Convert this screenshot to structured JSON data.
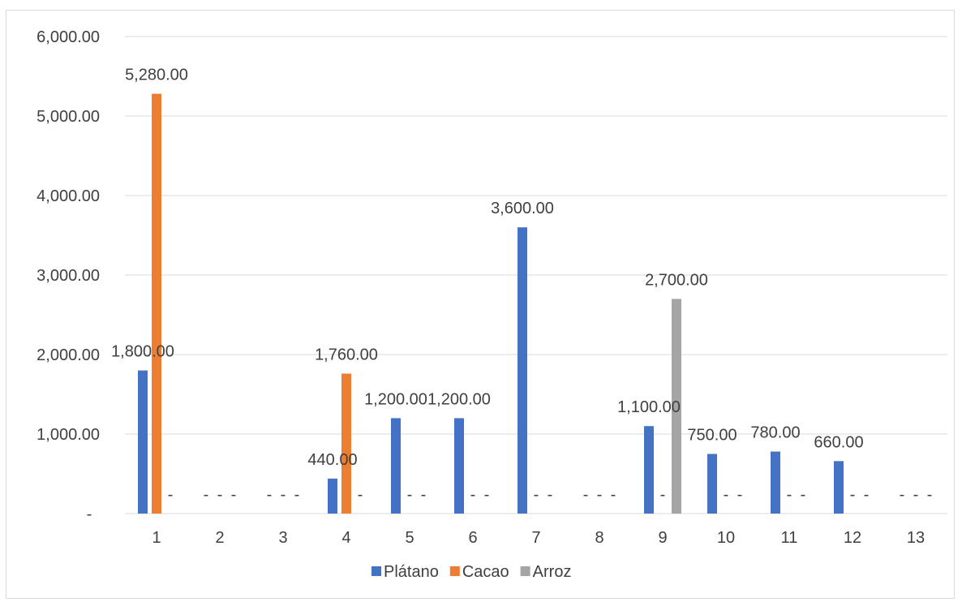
{
  "chart_data": {
    "type": "bar",
    "categories": [
      "1",
      "2",
      "3",
      "4",
      "5",
      "6",
      "7",
      "8",
      "9",
      "10",
      "11",
      "12",
      "13"
    ],
    "series": [
      {
        "name": "Plátano",
        "color": "#4472C4",
        "values": [
          1800,
          0,
          0,
          440,
          1200,
          1200,
          3600,
          0,
          1100,
          750,
          780,
          660,
          0
        ],
        "labels": [
          "1,800.00",
          "-",
          "-",
          "440.00",
          "1,200.00",
          "1,200.00",
          "3,600.00",
          "-",
          "1,100.00",
          "750.00",
          "780.00",
          "660.00",
          "-"
        ]
      },
      {
        "name": "Cacao",
        "color": "#ED7D31",
        "values": [
          5280,
          0,
          0,
          1760,
          0,
          0,
          0,
          0,
          0,
          0,
          0,
          0,
          0
        ],
        "labels": [
          "5,280.00",
          "-",
          "-",
          "1,760.00",
          "-",
          "-",
          "-",
          "-",
          "-",
          "-",
          "-",
          "-",
          "-"
        ]
      },
      {
        "name": "Arroz",
        "color": "#A5A5A5",
        "values": [
          0,
          0,
          0,
          0,
          0,
          0,
          0,
          0,
          2700,
          0,
          0,
          0,
          0
        ],
        "labels": [
          "-",
          "-",
          "-",
          "-",
          "-",
          "-",
          "-",
          "-",
          "2,700.00",
          "-",
          "-",
          "-",
          "-"
        ]
      }
    ],
    "ylim": [
      0,
      6000
    ],
    "yticks": [
      0,
      1000,
      2000,
      3000,
      4000,
      5000,
      6000
    ],
    "ytick_labels": [
      "-",
      "1,000.00",
      "2,000.00",
      "3,000.00",
      "4,000.00",
      "5,000.00",
      "6,000.00"
    ],
    "grid": true,
    "legend_position": "bottom",
    "gridline_color": "#d9d9d9"
  }
}
